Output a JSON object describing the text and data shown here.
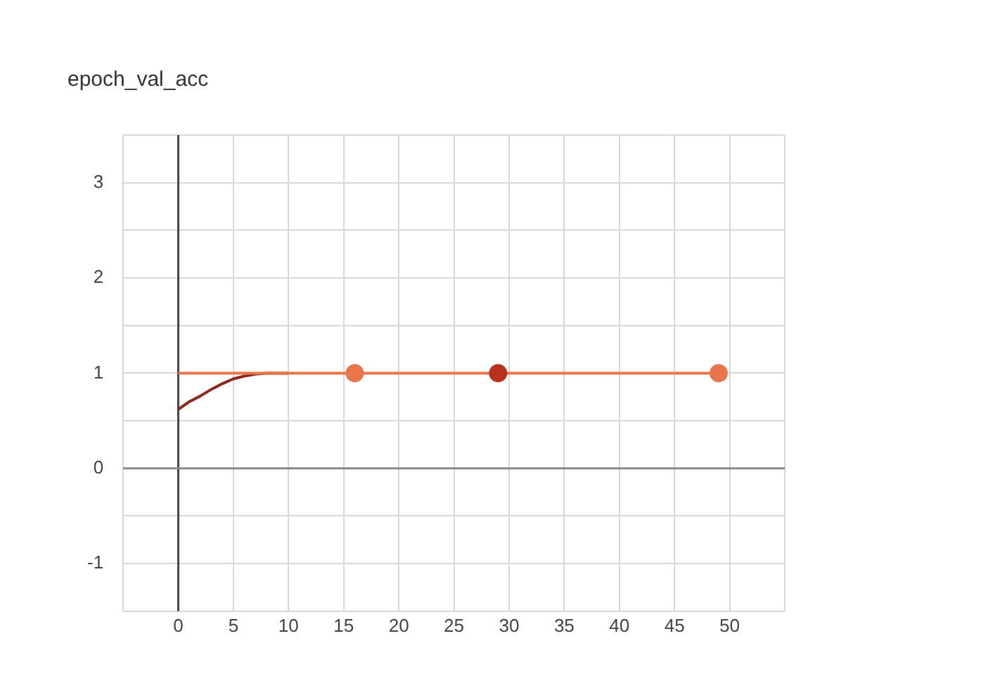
{
  "chart_data": {
    "type": "line",
    "title": "epoch_val_acc",
    "xlim": [
      -5,
      55
    ],
    "xticks": [
      {
        "value": -5,
        "label": null
      },
      0,
      5,
      10,
      15,
      20,
      25,
      30,
      35,
      40,
      45,
      50,
      {
        "value": 55,
        "label": null
      }
    ],
    "ylim": [
      -1.5,
      3.5
    ],
    "yticks": [
      {
        "value": -1.5,
        "label": null
      },
      -1,
      {
        "value": -0.5,
        "label": null
      },
      0,
      {
        "value": 0.5,
        "label": null
      },
      1,
      {
        "value": 1.5,
        "label": null
      },
      2,
      {
        "value": 2.5,
        "label": null
      },
      3,
      {
        "value": 3.5,
        "label": null
      }
    ],
    "grid": true,
    "legend": false,
    "marker": "none",
    "line_style": "solid",
    "ref_lines": [
      {
        "axis": "x",
        "value": 0,
        "color": "#444444"
      },
      {
        "axis": "y",
        "value": 0,
        "color": "#888888"
      }
    ],
    "series": [
      {
        "color": "#e8764a",
        "x": [
          0,
          16,
          29,
          49
        ],
        "values": [
          1,
          1,
          1,
          1
        ]
      },
      {
        "color": "#8b2a1c",
        "x": [
          0,
          1,
          2,
          3,
          4,
          5,
          6,
          7,
          8,
          10
        ],
        "values": [
          0.62,
          0.7,
          0.76,
          0.83,
          0.89,
          0.94,
          0.97,
          0.99,
          1,
          1
        ]
      },
      {
        "type": "scatter",
        "marker": "circle",
        "color": "#e8764a",
        "x": [
          16,
          49
        ],
        "values": [
          1,
          1
        ]
      },
      {
        "type": "scatter",
        "marker": "circle",
        "color": "#b8321e",
        "x": [
          29
        ],
        "values": [
          1
        ]
      }
    ]
  }
}
